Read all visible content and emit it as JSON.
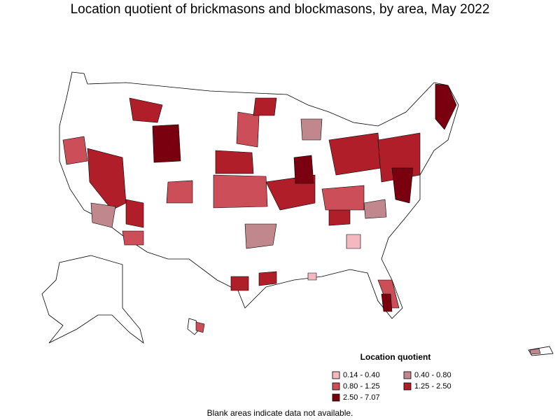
{
  "title": "Location quotient of brickmasons and blockmasons, by area, May 2022",
  "legend": {
    "title": "Location quotient",
    "items": [
      {
        "label": "0.14 - 0.40",
        "color": "#f4b9c0"
      },
      {
        "label": "0.40 - 0.80",
        "color": "#c0888c"
      },
      {
        "label": "0.80 - 1.25",
        "color": "#cc4e58"
      },
      {
        "label": "1.25 - 2.50",
        "color": "#b01e2a"
      },
      {
        "label": "2.50 - 7.07",
        "color": "#7a0010"
      }
    ]
  },
  "note": "Blank areas indicate data not available."
}
